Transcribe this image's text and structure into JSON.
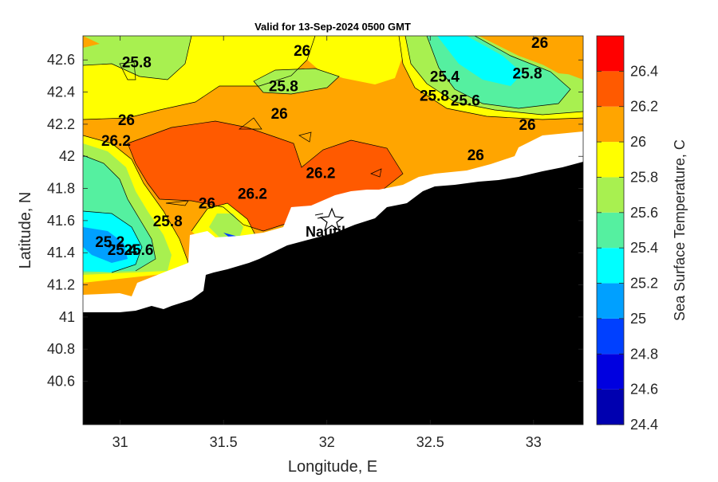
{
  "chart_data": {
    "type": "heatmap",
    "title": "Valid for 13-Sep-2024 0500 GMT",
    "xlabel": "Longitude, E",
    "ylabel": "Latitude, N",
    "xlim": [
      30.82,
      33.24
    ],
    "ylim": [
      40.33,
      42.75
    ],
    "x_ticks": [
      31,
      31.5,
      32,
      32.5,
      33
    ],
    "x_tick_labels": [
      "31",
      "31.5",
      "32",
      "32.5",
      "33"
    ],
    "y_ticks": [
      40.6,
      40.8,
      41,
      41.2,
      41.4,
      41.6,
      41.8,
      42,
      42.2,
      42.4,
      42.6
    ],
    "y_tick_labels": [
      "40.6",
      "40.8",
      "41",
      "41.2",
      "41.4",
      "41.6",
      "41.8",
      "42",
      "42.2",
      "42.4",
      "42.6"
    ],
    "colorbar": {
      "label": "Sea Surface Temperature, C",
      "range": [
        24.4,
        26.6
      ],
      "levels": [
        {
          "from": 24.4,
          "to": 24.6,
          "color": "#0000b0"
        },
        {
          "from": 24.6,
          "to": 24.8,
          "color": "#0000e0"
        },
        {
          "from": 24.8,
          "to": 25.0,
          "color": "#0040ff"
        },
        {
          "from": 25.0,
          "to": 25.2,
          "color": "#00a0ff"
        },
        {
          "from": 25.2,
          "to": 25.4,
          "color": "#00ffff"
        },
        {
          "from": 25.4,
          "to": 25.6,
          "color": "#55f0a0"
        },
        {
          "from": 25.6,
          "to": 25.8,
          "color": "#a8f050"
        },
        {
          "from": 25.8,
          "to": 26.0,
          "color": "#ffff00"
        },
        {
          "from": 26.0,
          "to": 26.2,
          "color": "#ffa500"
        },
        {
          "from": 26.2,
          "to": 26.4,
          "color": "#ff5a00"
        },
        {
          "from": 26.4,
          "to": 26.6,
          "color": "#ff0000"
        }
      ],
      "tick_labels": [
        "26.4",
        "26.2",
        "26",
        "25.8",
        "25.6",
        "25.4",
        "25.2",
        "25",
        "24.8",
        "24.6",
        "24.4"
      ]
    },
    "contour_labels": [
      {
        "text": "25.8",
        "lon": 31.08,
        "lat": 42.59
      },
      {
        "text": "26",
        "lon": 31.88,
        "lat": 42.66
      },
      {
        "text": "26",
        "lon": 33.03,
        "lat": 42.71
      },
      {
        "text": "25.8",
        "lon": 31.79,
        "lat": 42.44
      },
      {
        "text": "25.4",
        "lon": 32.57,
        "lat": 42.5
      },
      {
        "text": "25.8",
        "lon": 32.97,
        "lat": 42.52
      },
      {
        "text": "25.8",
        "lon": 32.52,
        "lat": 42.38
      },
      {
        "text": "25.6",
        "lon": 32.67,
        "lat": 42.35
      },
      {
        "text": "26",
        "lon": 31.77,
        "lat": 42.27
      },
      {
        "text": "26",
        "lon": 31.03,
        "lat": 42.23
      },
      {
        "text": "26",
        "lon": 32.97,
        "lat": 42.2
      },
      {
        "text": "26.2",
        "lon": 30.98,
        "lat": 42.1
      },
      {
        "text": "26",
        "lon": 32.72,
        "lat": 42.01
      },
      {
        "text": "26.2",
        "lon": 31.97,
        "lat": 41.9
      },
      {
        "text": "26.2",
        "lon": 31.64,
        "lat": 41.77
      },
      {
        "text": "26",
        "lon": 31.42,
        "lat": 41.71
      },
      {
        "text": "25.8",
        "lon": 31.23,
        "lat": 41.6
      },
      {
        "text": "25.2",
        "lon": 30.95,
        "lat": 41.47
      },
      {
        "text": "25.4",
        "lon": 31.01,
        "lat": 41.42
      },
      {
        "text": "25.6",
        "lon": 31.09,
        "lat": 41.42
      }
    ],
    "place_label": "Nautil"
  }
}
